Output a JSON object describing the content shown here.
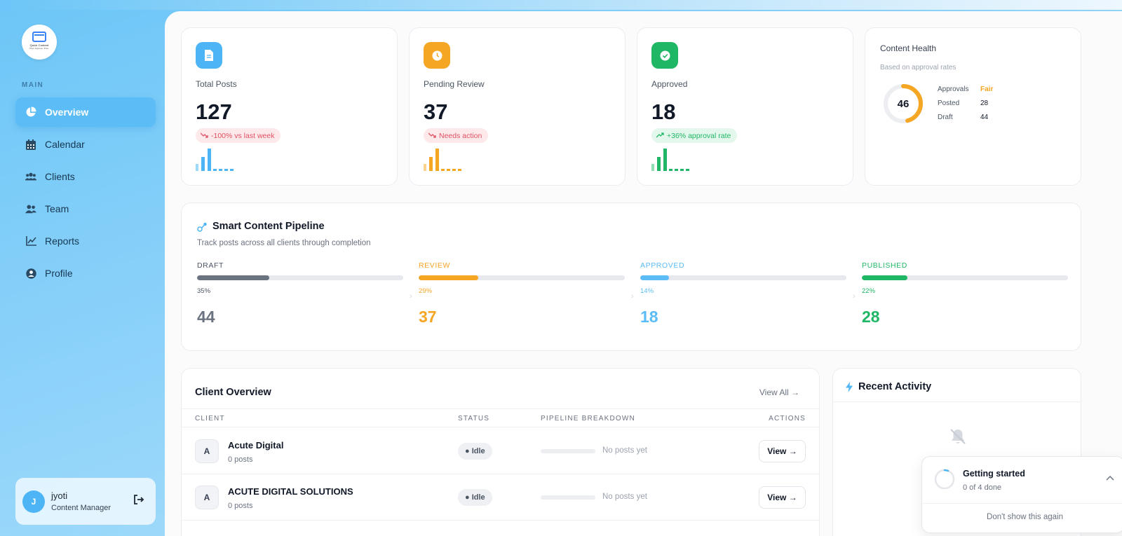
{
  "sidebar": {
    "logo_text": "Quick Content",
    "logo_tagline": "Plan. Approve. Post.",
    "section_label": "MAIN",
    "items": [
      {
        "label": "Overview",
        "icon": "pie-chart-icon"
      },
      {
        "label": "Calendar",
        "icon": "calendar-icon"
      },
      {
        "label": "Clients",
        "icon": "clients-icon"
      },
      {
        "label": "Team",
        "icon": "team-icon"
      },
      {
        "label": "Reports",
        "icon": "reports-icon"
      },
      {
        "label": "Profile",
        "icon": "profile-icon"
      }
    ],
    "user": {
      "initial": "J",
      "name": "jyoti",
      "role": "Content Manager"
    }
  },
  "stats": {
    "total": {
      "label": "Total Posts",
      "value": "127",
      "badge": "-100% vs last week",
      "color": "#4db5f5"
    },
    "pending": {
      "label": "Pending Review",
      "value": "37",
      "badge": "Needs action",
      "color": "#f5a623"
    },
    "approved": {
      "label": "Approved",
      "value": "18",
      "badge": "+36% approval rate",
      "color": "#1fb765"
    }
  },
  "health": {
    "title": "Content Health",
    "subtitle": "Based on approval rates",
    "score": "46",
    "score_fraction": 0.46,
    "rows": [
      {
        "label": "Approvals",
        "value": "Fair"
      },
      {
        "label": "Posted",
        "value": "28"
      },
      {
        "label": "Draft",
        "value": "44"
      }
    ]
  },
  "pipeline": {
    "title": "Smart Content Pipeline",
    "subtitle": "Track posts across all clients through completion",
    "stages": [
      {
        "label": "DRAFT",
        "pct": "35%",
        "fraction": 0.35,
        "count": "44",
        "color": "#6b7280"
      },
      {
        "label": "REVIEW",
        "pct": "29%",
        "fraction": 0.29,
        "count": "37",
        "color": "#f5a623"
      },
      {
        "label": "APPROVED",
        "pct": "14%",
        "fraction": 0.14,
        "count": "18",
        "color": "#5bbcf6"
      },
      {
        "label": "PUBLISHED",
        "pct": "22%",
        "fraction": 0.22,
        "count": "28",
        "color": "#1fb765"
      }
    ]
  },
  "client_overview": {
    "title": "Client Overview",
    "view_all": "View All →",
    "columns": {
      "client": "CLIENT",
      "status": "STATUS",
      "pipeline": "PIPELINE BREAKDOWN",
      "actions": "ACTIONS"
    },
    "rows": [
      {
        "initial": "A",
        "name": "Acute Digital",
        "posts": "0 posts",
        "status": "● Idle",
        "pipeline": "No posts yet",
        "action": "View →"
      },
      {
        "initial": "A",
        "name": "ACUTE DIGITAL SOLUTIONS",
        "posts": "0 posts",
        "status": "● Idle",
        "pipeline": "No posts yet",
        "action": "View →"
      }
    ]
  },
  "recent_activity": {
    "title": "Recent Activity"
  },
  "getting_started": {
    "title": "Getting started",
    "progress": "0 of 4 done",
    "progress_fraction": 0.0,
    "dismiss": "Don't show this again"
  }
}
